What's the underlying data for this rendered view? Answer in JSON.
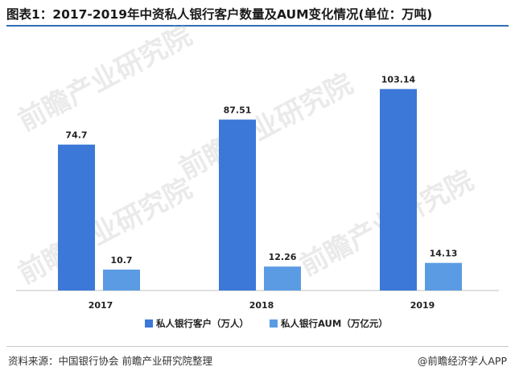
{
  "title": "图表1：2017-2019年中资私人银行客户数量及AUM变化情况(单位：万吨)",
  "source": "资料来源：中国银行协会 前瞻产业研究院整理",
  "brand": "@前瞻经济学人APP",
  "watermark_text": "前瞻产业研究院",
  "colors": {
    "series1": "#3b78d8",
    "series2": "#5b9be3",
    "axis": "#bfbfbf",
    "title_rule": "#2f6fb7"
  },
  "chart_data": {
    "type": "bar",
    "categories": [
      "2017",
      "2018",
      "2019"
    ],
    "series": [
      {
        "name": "私人银行客户（万人）",
        "values": [
          74.7,
          87.51,
          103.14
        ],
        "labels": [
          "74.7",
          "87.51",
          "103.14"
        ]
      },
      {
        "name": "私人银行AUM（万亿元）",
        "values": [
          10.7,
          12.26,
          14.13
        ],
        "labels": [
          "10.7",
          "12.26",
          "14.13"
        ]
      }
    ],
    "ylim": [
      0,
      110
    ],
    "grid": false,
    "legend": "bottom"
  }
}
